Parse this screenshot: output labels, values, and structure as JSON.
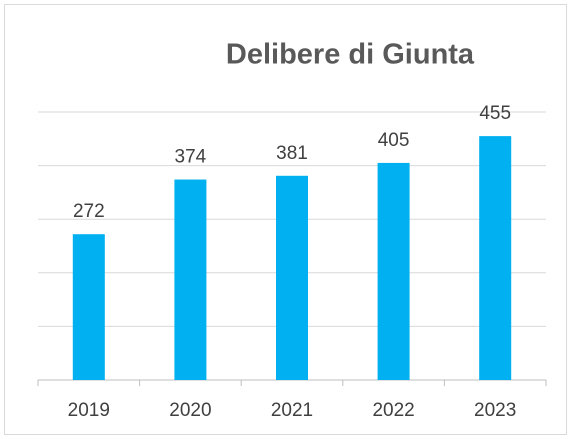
{
  "chart_data": {
    "type": "bar",
    "title": "Delibere di Giunta",
    "categories": [
      "2019",
      "2020",
      "2021",
      "2022",
      "2023"
    ],
    "values": [
      272,
      374,
      381,
      405,
      455
    ],
    "color": "#00b0f0",
    "ylim": [
      0,
      500
    ],
    "yticks": [
      0,
      100,
      200,
      300,
      400,
      500
    ],
    "grid": true
  }
}
